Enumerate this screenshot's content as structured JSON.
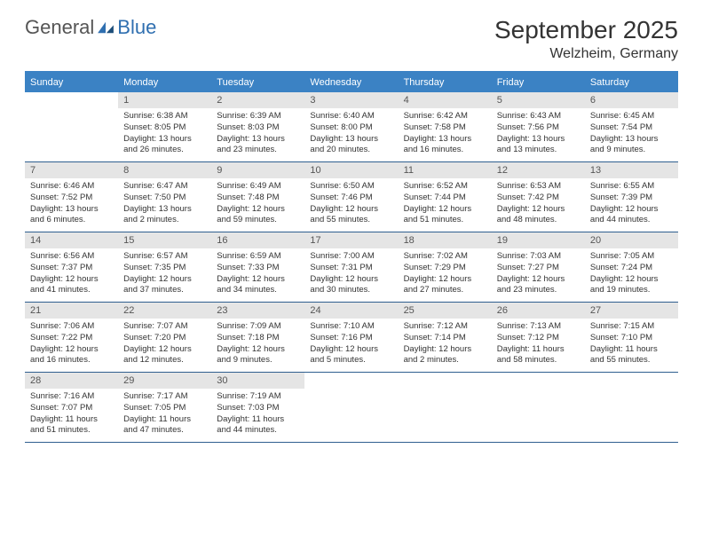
{
  "brand": {
    "part1": "General",
    "part2": "Blue"
  },
  "title": "September 2025",
  "location": "Welzheim, Germany",
  "colors": {
    "header_bg": "#3b82c4",
    "daynum_bg": "#e5e5e5",
    "rule": "#2f5f8f",
    "brand_blue": "#2f6fb0",
    "text": "#333333"
  },
  "weekdays": [
    "Sunday",
    "Monday",
    "Tuesday",
    "Wednesday",
    "Thursday",
    "Friday",
    "Saturday"
  ],
  "weeks": [
    [
      {
        "n": "",
        "sr": "",
        "ss": "",
        "dl": ""
      },
      {
        "n": "1",
        "sr": "Sunrise: 6:38 AM",
        "ss": "Sunset: 8:05 PM",
        "dl": "Daylight: 13 hours and 26 minutes."
      },
      {
        "n": "2",
        "sr": "Sunrise: 6:39 AM",
        "ss": "Sunset: 8:03 PM",
        "dl": "Daylight: 13 hours and 23 minutes."
      },
      {
        "n": "3",
        "sr": "Sunrise: 6:40 AM",
        "ss": "Sunset: 8:00 PM",
        "dl": "Daylight: 13 hours and 20 minutes."
      },
      {
        "n": "4",
        "sr": "Sunrise: 6:42 AM",
        "ss": "Sunset: 7:58 PM",
        "dl": "Daylight: 13 hours and 16 minutes."
      },
      {
        "n": "5",
        "sr": "Sunrise: 6:43 AM",
        "ss": "Sunset: 7:56 PM",
        "dl": "Daylight: 13 hours and 13 minutes."
      },
      {
        "n": "6",
        "sr": "Sunrise: 6:45 AM",
        "ss": "Sunset: 7:54 PM",
        "dl": "Daylight: 13 hours and 9 minutes."
      }
    ],
    [
      {
        "n": "7",
        "sr": "Sunrise: 6:46 AM",
        "ss": "Sunset: 7:52 PM",
        "dl": "Daylight: 13 hours and 6 minutes."
      },
      {
        "n": "8",
        "sr": "Sunrise: 6:47 AM",
        "ss": "Sunset: 7:50 PM",
        "dl": "Daylight: 13 hours and 2 minutes."
      },
      {
        "n": "9",
        "sr": "Sunrise: 6:49 AM",
        "ss": "Sunset: 7:48 PM",
        "dl": "Daylight: 12 hours and 59 minutes."
      },
      {
        "n": "10",
        "sr": "Sunrise: 6:50 AM",
        "ss": "Sunset: 7:46 PM",
        "dl": "Daylight: 12 hours and 55 minutes."
      },
      {
        "n": "11",
        "sr": "Sunrise: 6:52 AM",
        "ss": "Sunset: 7:44 PM",
        "dl": "Daylight: 12 hours and 51 minutes."
      },
      {
        "n": "12",
        "sr": "Sunrise: 6:53 AM",
        "ss": "Sunset: 7:42 PM",
        "dl": "Daylight: 12 hours and 48 minutes."
      },
      {
        "n": "13",
        "sr": "Sunrise: 6:55 AM",
        "ss": "Sunset: 7:39 PM",
        "dl": "Daylight: 12 hours and 44 minutes."
      }
    ],
    [
      {
        "n": "14",
        "sr": "Sunrise: 6:56 AM",
        "ss": "Sunset: 7:37 PM",
        "dl": "Daylight: 12 hours and 41 minutes."
      },
      {
        "n": "15",
        "sr": "Sunrise: 6:57 AM",
        "ss": "Sunset: 7:35 PM",
        "dl": "Daylight: 12 hours and 37 minutes."
      },
      {
        "n": "16",
        "sr": "Sunrise: 6:59 AM",
        "ss": "Sunset: 7:33 PM",
        "dl": "Daylight: 12 hours and 34 minutes."
      },
      {
        "n": "17",
        "sr": "Sunrise: 7:00 AM",
        "ss": "Sunset: 7:31 PM",
        "dl": "Daylight: 12 hours and 30 minutes."
      },
      {
        "n": "18",
        "sr": "Sunrise: 7:02 AM",
        "ss": "Sunset: 7:29 PM",
        "dl": "Daylight: 12 hours and 27 minutes."
      },
      {
        "n": "19",
        "sr": "Sunrise: 7:03 AM",
        "ss": "Sunset: 7:27 PM",
        "dl": "Daylight: 12 hours and 23 minutes."
      },
      {
        "n": "20",
        "sr": "Sunrise: 7:05 AM",
        "ss": "Sunset: 7:24 PM",
        "dl": "Daylight: 12 hours and 19 minutes."
      }
    ],
    [
      {
        "n": "21",
        "sr": "Sunrise: 7:06 AM",
        "ss": "Sunset: 7:22 PM",
        "dl": "Daylight: 12 hours and 16 minutes."
      },
      {
        "n": "22",
        "sr": "Sunrise: 7:07 AM",
        "ss": "Sunset: 7:20 PM",
        "dl": "Daylight: 12 hours and 12 minutes."
      },
      {
        "n": "23",
        "sr": "Sunrise: 7:09 AM",
        "ss": "Sunset: 7:18 PM",
        "dl": "Daylight: 12 hours and 9 minutes."
      },
      {
        "n": "24",
        "sr": "Sunrise: 7:10 AM",
        "ss": "Sunset: 7:16 PM",
        "dl": "Daylight: 12 hours and 5 minutes."
      },
      {
        "n": "25",
        "sr": "Sunrise: 7:12 AM",
        "ss": "Sunset: 7:14 PM",
        "dl": "Daylight: 12 hours and 2 minutes."
      },
      {
        "n": "26",
        "sr": "Sunrise: 7:13 AM",
        "ss": "Sunset: 7:12 PM",
        "dl": "Daylight: 11 hours and 58 minutes."
      },
      {
        "n": "27",
        "sr": "Sunrise: 7:15 AM",
        "ss": "Sunset: 7:10 PM",
        "dl": "Daylight: 11 hours and 55 minutes."
      }
    ],
    [
      {
        "n": "28",
        "sr": "Sunrise: 7:16 AM",
        "ss": "Sunset: 7:07 PM",
        "dl": "Daylight: 11 hours and 51 minutes."
      },
      {
        "n": "29",
        "sr": "Sunrise: 7:17 AM",
        "ss": "Sunset: 7:05 PM",
        "dl": "Daylight: 11 hours and 47 minutes."
      },
      {
        "n": "30",
        "sr": "Sunrise: 7:19 AM",
        "ss": "Sunset: 7:03 PM",
        "dl": "Daylight: 11 hours and 44 minutes."
      },
      {
        "n": "",
        "sr": "",
        "ss": "",
        "dl": ""
      },
      {
        "n": "",
        "sr": "",
        "ss": "",
        "dl": ""
      },
      {
        "n": "",
        "sr": "",
        "ss": "",
        "dl": ""
      },
      {
        "n": "",
        "sr": "",
        "ss": "",
        "dl": ""
      }
    ]
  ]
}
